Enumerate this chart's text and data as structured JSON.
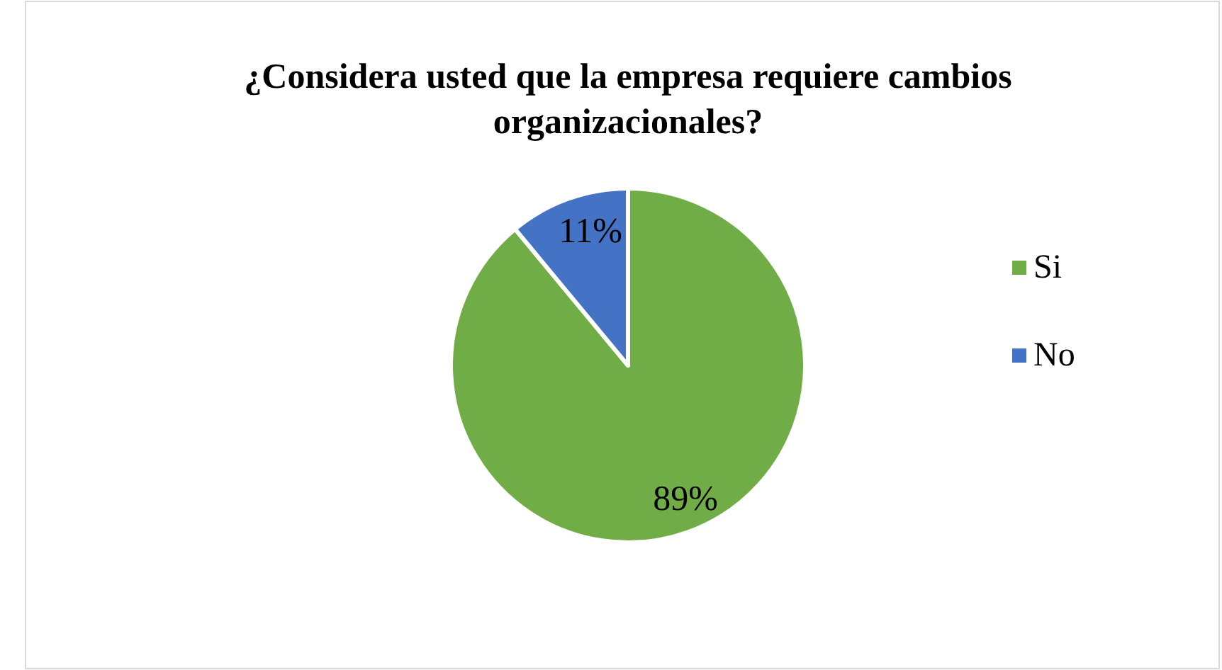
{
  "chart_data": {
    "type": "pie",
    "title": "¿Considera usted que la empresa requiere cambios organizacionales?",
    "categories": [
      "Si",
      "No"
    ],
    "values": [
      89,
      11
    ],
    "colors": [
      "#70ad47",
      "#4472c4"
    ],
    "value_labels": [
      "89%",
      "11%"
    ],
    "legend": "right"
  }
}
